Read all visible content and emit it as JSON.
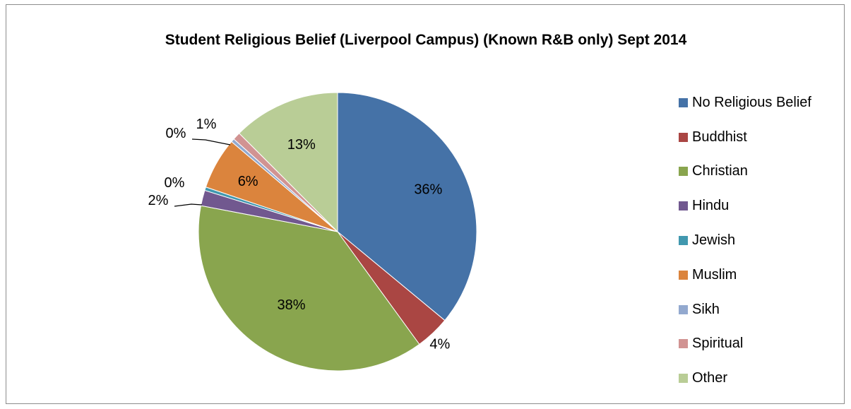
{
  "chart_data": {
    "type": "pie",
    "title": "Student Religious Belief (Liverpool Campus) (Known R&B only) Sept 2014",
    "legend_position": "right",
    "slices": [
      {
        "name": "No Religious Belief",
        "value": 36.0,
        "label": "36%",
        "color": "#4572A7"
      },
      {
        "name": "Buddhist",
        "value": 4.0,
        "label": "4%",
        "color": "#AA4643"
      },
      {
        "name": "Christian",
        "value": 38.0,
        "label": "38%",
        "color": "#89A54E"
      },
      {
        "name": "Hindu",
        "value": 1.8,
        "label": "2%",
        "color": "#71588F"
      },
      {
        "name": "Jewish",
        "value": 0.4,
        "label": "0%",
        "color": "#4198AF"
      },
      {
        "name": "Muslim",
        "value": 6.0,
        "label": "6%",
        "color": "#DB843D"
      },
      {
        "name": "Sikh",
        "value": 0.4,
        "label": "0%",
        "color": "#93A9CF"
      },
      {
        "name": "Spiritual",
        "value": 0.9,
        "label": "1%",
        "color": "#D19392"
      },
      {
        "name": "Other",
        "value": 12.5,
        "label": "13%",
        "color": "#B9CD96"
      }
    ]
  }
}
